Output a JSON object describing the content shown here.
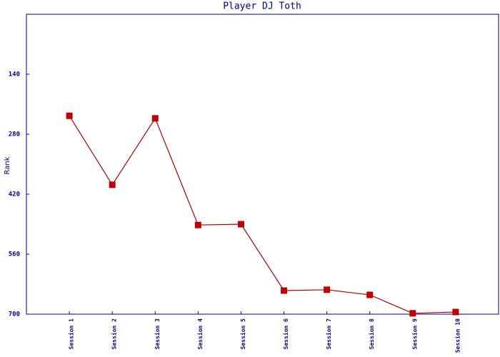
{
  "chart_data": {
    "type": "line",
    "title": "Player DJ Toth",
    "y_label": "Rank",
    "categories": [
      "Session 1",
      "Session 2",
      "Session 3",
      "Session 4",
      "Session 5",
      "Session 6",
      "Session 7",
      "Session 8",
      "Session 9",
      "Session 10"
    ],
    "series": [
      {
        "name": "Rank",
        "color": "#aa0000",
        "values": [
          237,
          398,
          243,
          492,
          490,
          645,
          643,
          655,
          698,
          695
        ]
      }
    ],
    "ylim": [
      0,
      700
    ],
    "yticks": [
      140,
      280,
      420,
      560,
      700
    ],
    "y_inverted": true,
    "grid": false
  }
}
